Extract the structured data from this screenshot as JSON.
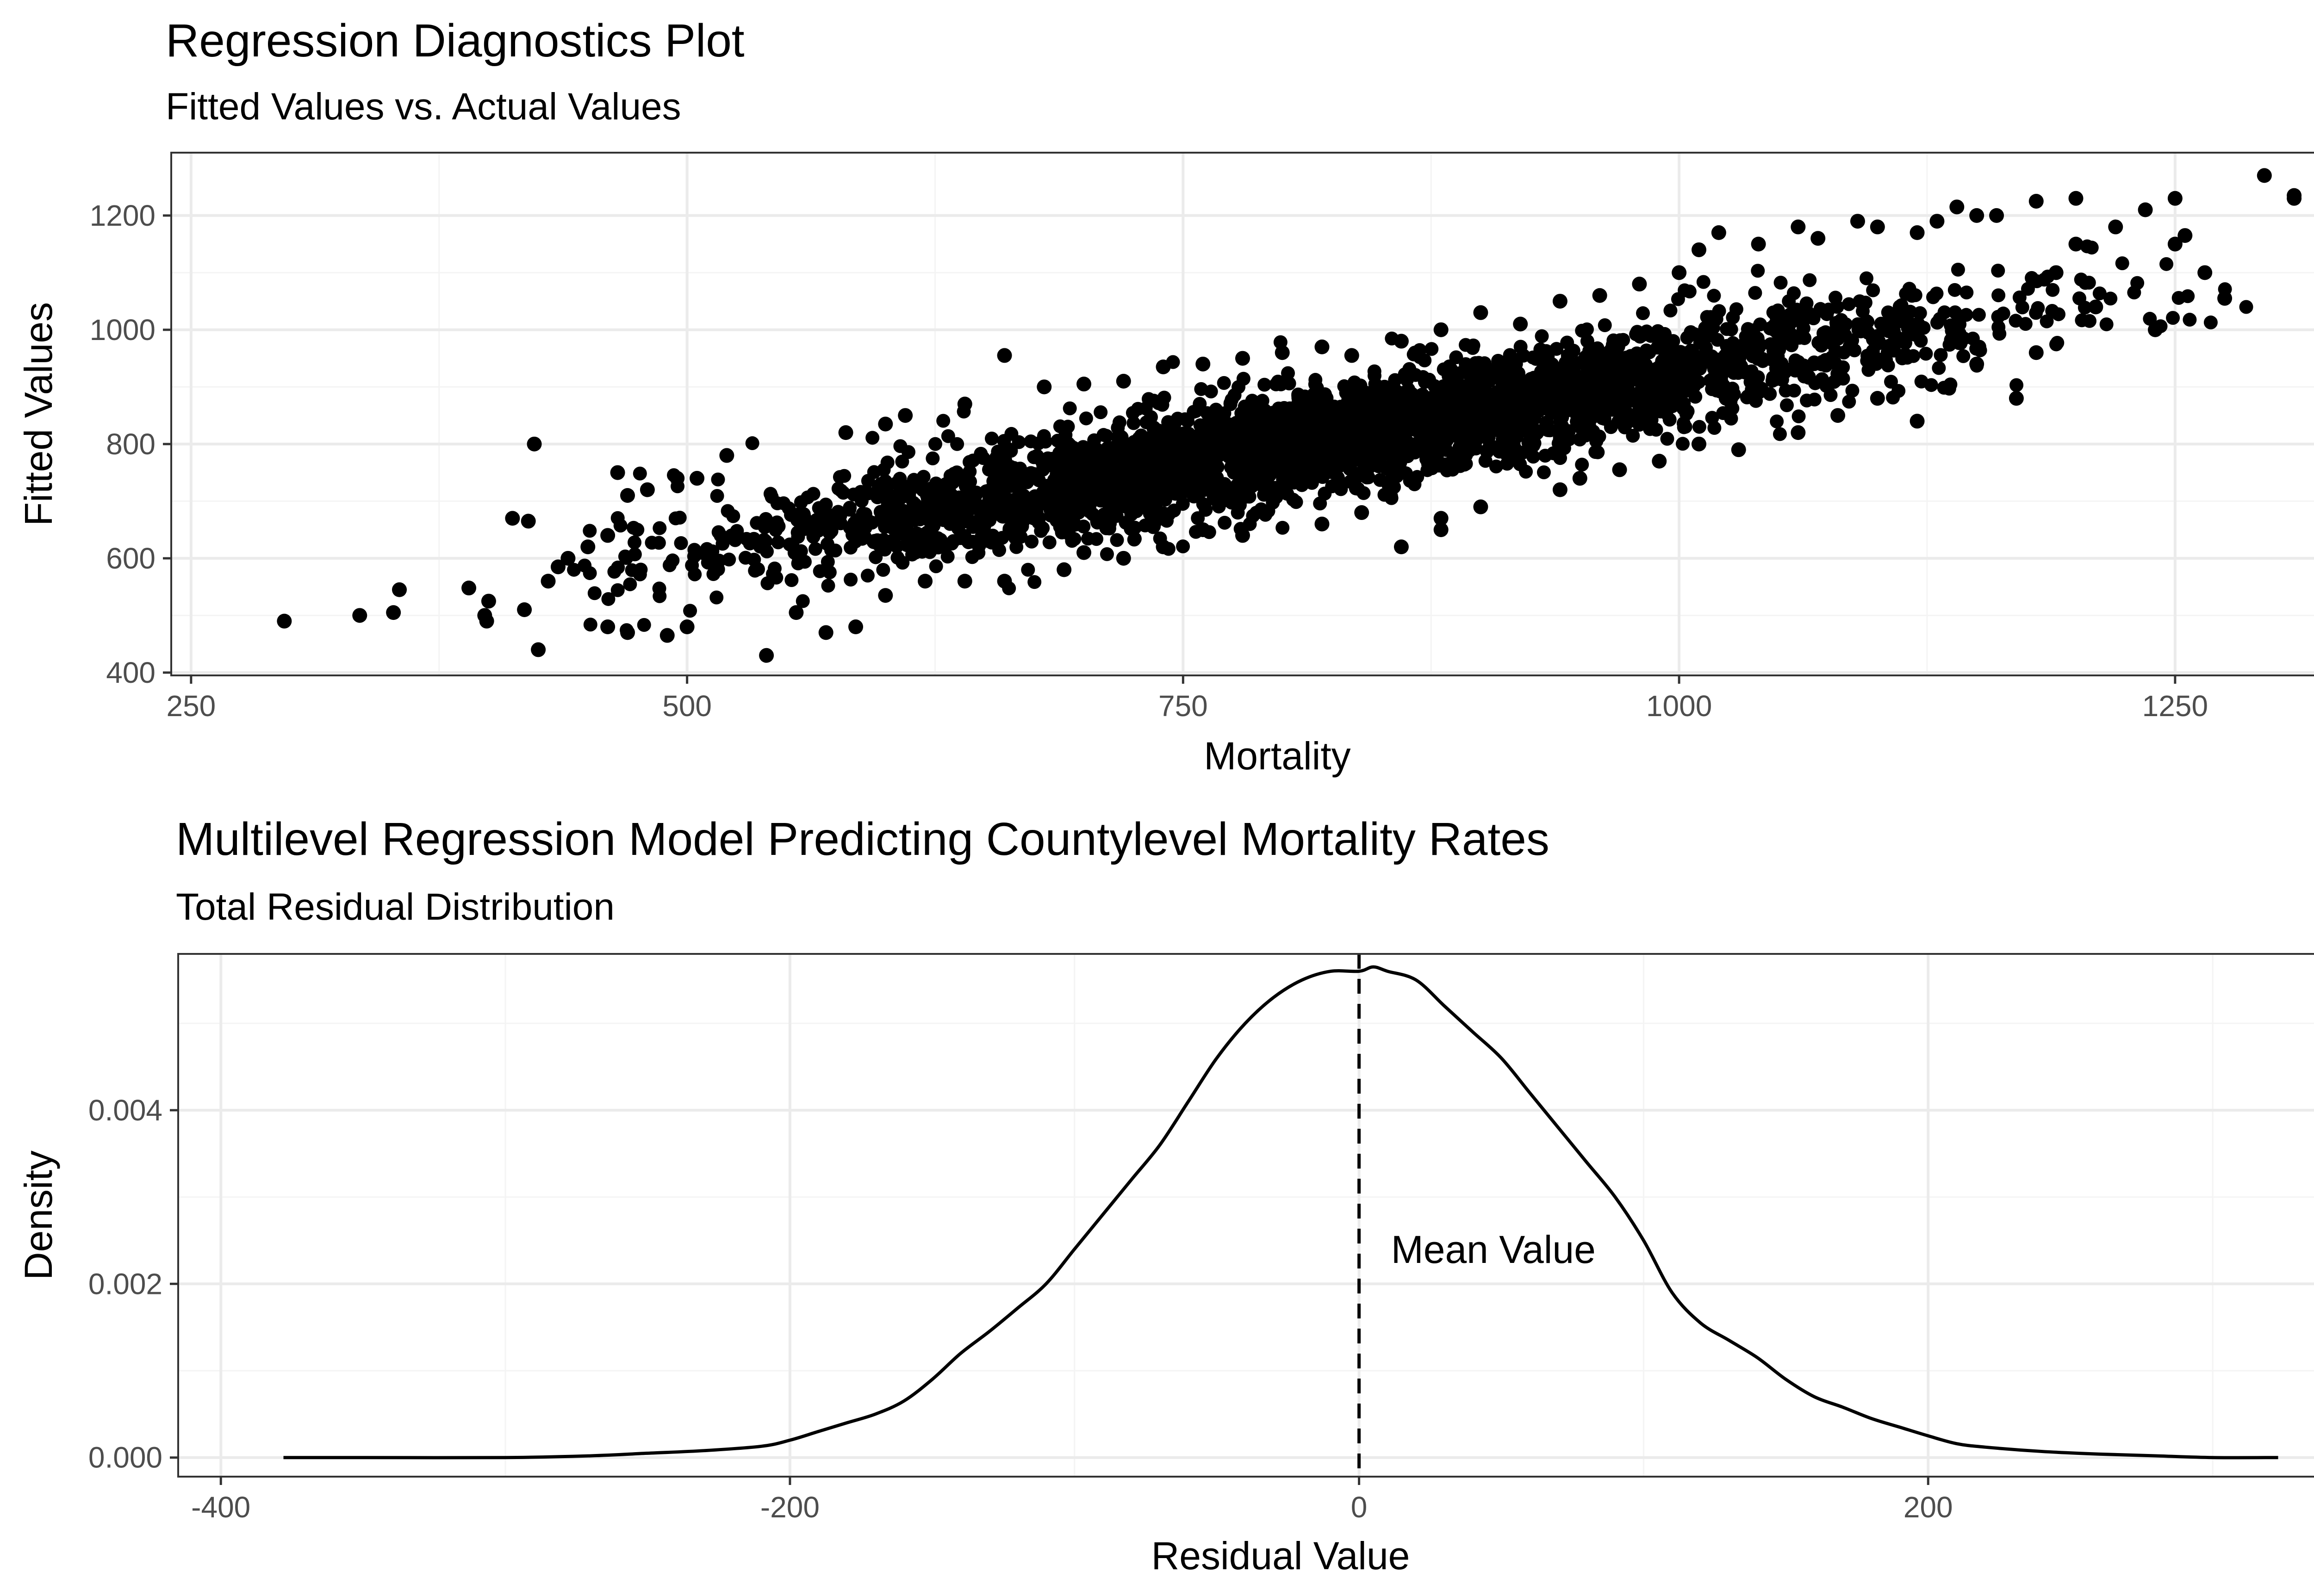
{
  "chart_data": [
    {
      "type": "scatter",
      "title": "Regression Diagnostics Plot",
      "subtitle": "Fitted Values vs. Actual Values",
      "xlabel": "Mortality",
      "ylabel": "Fitted Values",
      "xlim": [
        240,
        1355
      ],
      "ylim": [
        395,
        1310
      ],
      "x_ticks": [
        250,
        500,
        750,
        1000,
        1250
      ],
      "y_ticks": [
        400,
        600,
        800,
        1000,
        1200
      ],
      "grid": true,
      "point_color": "#000000",
      "trend": {
        "slope": 0.62,
        "intercept": 300,
        "x_center": 830,
        "x_sd": 150,
        "residual_sd": 48
      },
      "points": [
        [
          297,
          490
        ],
        [
          335,
          500
        ],
        [
          352,
          505
        ],
        [
          355,
          545
        ],
        [
          390,
          548
        ],
        [
          398,
          500
        ],
        [
          400,
          525
        ],
        [
          399,
          490
        ],
        [
          412,
          670
        ],
        [
          420,
          665
        ],
        [
          418,
          510
        ],
        [
          423,
          800
        ],
        [
          425,
          440
        ],
        [
          430,
          560
        ],
        [
          435,
          585
        ],
        [
          440,
          600
        ],
        [
          450,
          620
        ],
        [
          460,
          640
        ],
        [
          465,
          750
        ],
        [
          470,
          710
        ],
        [
          480,
          720
        ],
        [
          495,
          740
        ],
        [
          505,
          740
        ],
        [
          460,
          480
        ],
        [
          470,
          470
        ],
        [
          490,
          465
        ],
        [
          500,
          480
        ],
        [
          520,
          780
        ],
        [
          540,
          430
        ],
        [
          555,
          505
        ],
        [
          570,
          470
        ],
        [
          585,
          480
        ],
        [
          580,
          820
        ],
        [
          600,
          835
        ],
        [
          660,
          955
        ],
        [
          835,
          955
        ],
        [
          1295,
          1270
        ],
        [
          1310,
          1235
        ],
        [
          1275,
          1055
        ],
        [
          1265,
          1100
        ],
        [
          1235,
          1210
        ],
        [
          1250,
          1230
        ],
        [
          1180,
          1225
        ],
        [
          1200,
          1230
        ],
        [
          1140,
          1215
        ],
        [
          1150,
          1200
        ],
        [
          1100,
          1180
        ],
        [
          1020,
          1170
        ],
        [
          1060,
          1180
        ],
        [
          1310,
          1230
        ],
        [
          1190,
          1100
        ],
        [
          1210,
          1040
        ],
        [
          1240,
          1000
        ],
        [
          1170,
          880
        ],
        [
          1180,
          960
        ],
        [
          1150,
          940
        ],
        [
          1100,
          880
        ],
        [
          1080,
          850
        ],
        [
          1120,
          840
        ],
        [
          1060,
          820
        ],
        [
          1010,
          800
        ],
        [
          1030,
          790
        ],
        [
          970,
          755
        ],
        [
          990,
          770
        ],
        [
          940,
          720
        ],
        [
          950,
          740
        ],
        [
          880,
          670
        ],
        [
          900,
          690
        ],
        [
          860,
          620
        ],
        [
          880,
          650
        ],
        [
          820,
          660
        ],
        [
          840,
          680
        ],
        [
          780,
          640
        ],
        [
          760,
          650
        ],
        [
          740,
          620
        ],
        [
          720,
          600
        ],
        [
          700,
          610
        ],
        [
          690,
          580
        ],
        [
          660,
          560
        ],
        [
          640,
          560
        ],
        [
          620,
          560
        ],
        [
          600,
          535
        ],
        [
          610,
          850
        ],
        [
          640,
          870
        ],
        [
          680,
          900
        ],
        [
          700,
          905
        ],
        [
          720,
          910
        ],
        [
          740,
          935
        ],
        [
          760,
          940
        ],
        [
          780,
          950
        ],
        [
          800,
          960
        ],
        [
          820,
          970
        ],
        [
          860,
          980
        ],
        [
          880,
          1000
        ],
        [
          900,
          1030
        ],
        [
          920,
          1010
        ],
        [
          940,
          1050
        ],
        [
          960,
          1060
        ],
        [
          980,
          1080
        ],
        [
          1000,
          1100
        ],
        [
          1010,
          1140
        ],
        [
          1040,
          1150
        ],
        [
          1070,
          1160
        ],
        [
          1090,
          1190
        ],
        [
          1120,
          1170
        ],
        [
          1130,
          1190
        ],
        [
          1160,
          1200
        ],
        [
          1200,
          1150
        ],
        [
          1220,
          1180
        ],
        [
          1250,
          1150
        ],
        [
          1255,
          1165
        ]
      ]
    },
    {
      "type": "area",
      "title": "Multilevel Regression Model Predicting Countylevel Mortality Rates",
      "subtitle": "Total Residual Distribution",
      "xlabel": "Residual Value",
      "ylabel": "Density",
      "xlim": [
        -415,
        360
      ],
      "ylim": [
        -0.00022,
        0.0058
      ],
      "x_ticks": [
        -400,
        -200,
        0,
        200
      ],
      "y_ticks": [
        0.0,
        0.002,
        0.004
      ],
      "y_tick_labels": [
        "0.000",
        "0.002",
        "0.004"
      ],
      "grid": true,
      "line_color": "#000000",
      "x": [
        -378,
        -350,
        -300,
        -270,
        -250,
        -230,
        -210,
        -200,
        -190,
        -180,
        -170,
        -160,
        -150,
        -140,
        -130,
        -120,
        -110,
        -100,
        -90,
        -80,
        -70,
        -60,
        -50,
        -40,
        -30,
        -20,
        -10,
        0,
        5,
        10,
        20,
        30,
        40,
        50,
        60,
        70,
        80,
        90,
        100,
        110,
        120,
        130,
        140,
        150,
        160,
        170,
        180,
        190,
        200,
        210,
        220,
        240,
        260,
        280,
        300,
        323
      ],
      "y": [
        0.0,
        0.0,
        0.0,
        2e-05,
        5e-05,
        8e-05,
        0.00013,
        0.0002,
        0.0003,
        0.0004,
        0.0005,
        0.00065,
        0.0009,
        0.0012,
        0.00145,
        0.00172,
        0.002,
        0.0024,
        0.0028,
        0.0032,
        0.0036,
        0.0041,
        0.0046,
        0.005,
        0.0053,
        0.0055,
        0.0056,
        0.0056,
        0.00565,
        0.0056,
        0.0055,
        0.0052,
        0.0049,
        0.0046,
        0.0042,
        0.0038,
        0.0034,
        0.003,
        0.0025,
        0.0019,
        0.00155,
        0.00135,
        0.00115,
        0.0009,
        0.0007,
        0.00058,
        0.00045,
        0.00035,
        0.00025,
        0.00016,
        0.00012,
        7e-05,
        4e-05,
        2e-05,
        0.0,
        0.0
      ],
      "reference_line": {
        "x": 0,
        "style": "dashed"
      },
      "annotation": {
        "text": "Mean Value",
        "x": 8,
        "y": 0.0024
      }
    }
  ]
}
